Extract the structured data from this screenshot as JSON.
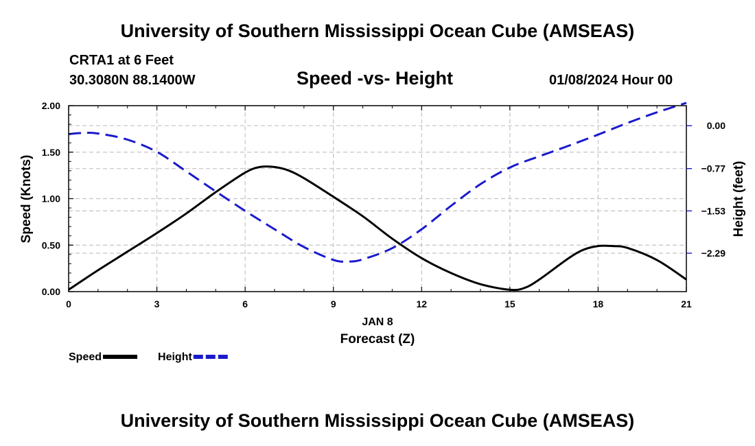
{
  "header": {
    "title": "University of Southern Mississippi Ocean Cube (AMSEAS)",
    "station": "CRTA1 at 6 Feet",
    "coords": "30.3080N  88.1400W",
    "run_time": "01/08/2024 Hour 00"
  },
  "footer": {
    "title": "University of Southern Mississippi Ocean Cube (AMSEAS)"
  },
  "chart_data": {
    "type": "line",
    "title": "Speed -vs- Height",
    "xlabel": "Forecast (Z)",
    "date_label": "JAN 8",
    "ylabel_left": "Speed (Knots)",
    "ylabel_right": "Height (feet)",
    "xlim": [
      0,
      21
    ],
    "x_ticks": [
      0,
      3,
      6,
      9,
      12,
      15,
      18,
      21
    ],
    "x_tick_labels": [
      "0",
      "3",
      "6",
      "9",
      "12",
      "15",
      "18",
      "21"
    ],
    "ylim_left": [
      0,
      2
    ],
    "y_left_ticks": [
      0,
      0.5,
      1,
      1.5,
      2
    ],
    "y_left_tick_labels": [
      "0.00",
      "0.50",
      "1.00",
      "1.50",
      "2.00"
    ],
    "ylim_right": [
      -2.98,
      0.36
    ],
    "y_right_ticks": [
      0.0,
      -0.77,
      -1.53,
      -2.29
    ],
    "y_right_tick_labels": [
      "0.00",
      "−0.77",
      "−1.53",
      "−2.29"
    ],
    "grid": true,
    "series": [
      {
        "name": "Speed",
        "axis": "left",
        "color": "#000000",
        "dash": "solid",
        "x": [
          0,
          1,
          2,
          3,
          4,
          5,
          6,
          6.5,
          7,
          7.5,
          8,
          9,
          10,
          11,
          12,
          13,
          14,
          15,
          15.5,
          16,
          17,
          17.5,
          18,
          18.5,
          19,
          20,
          21
        ],
        "values": [
          0.02,
          0.23,
          0.43,
          0.63,
          0.84,
          1.07,
          1.28,
          1.34,
          1.34,
          1.3,
          1.22,
          1.02,
          0.81,
          0.57,
          0.36,
          0.2,
          0.08,
          0.02,
          0.04,
          0.13,
          0.36,
          0.45,
          0.49,
          0.49,
          0.47,
          0.34,
          0.13
        ]
      },
      {
        "name": "Height",
        "axis": "right",
        "color": "#1a1acc",
        "dash": "dashed",
        "x": [
          0,
          0.5,
          1,
          2,
          3,
          4,
          5,
          6,
          7,
          8,
          9,
          9.5,
          10,
          11,
          12,
          13,
          14,
          15,
          16,
          17,
          18,
          19,
          20,
          21
        ],
        "values": [
          -0.15,
          -0.13,
          -0.14,
          -0.25,
          -0.47,
          -0.82,
          -1.18,
          -1.53,
          -1.86,
          -2.18,
          -2.41,
          -2.44,
          -2.4,
          -2.2,
          -1.86,
          -1.44,
          -1.05,
          -0.75,
          -0.55,
          -0.36,
          -0.16,
          0.05,
          0.24,
          0.41
        ]
      }
    ],
    "legend": [
      {
        "label": "Speed",
        "color": "#000000",
        "dash": "solid"
      },
      {
        "label": "Height",
        "color": "#1a1acc",
        "dash": "dashed"
      }
    ],
    "legend_position": "bottom-left"
  }
}
